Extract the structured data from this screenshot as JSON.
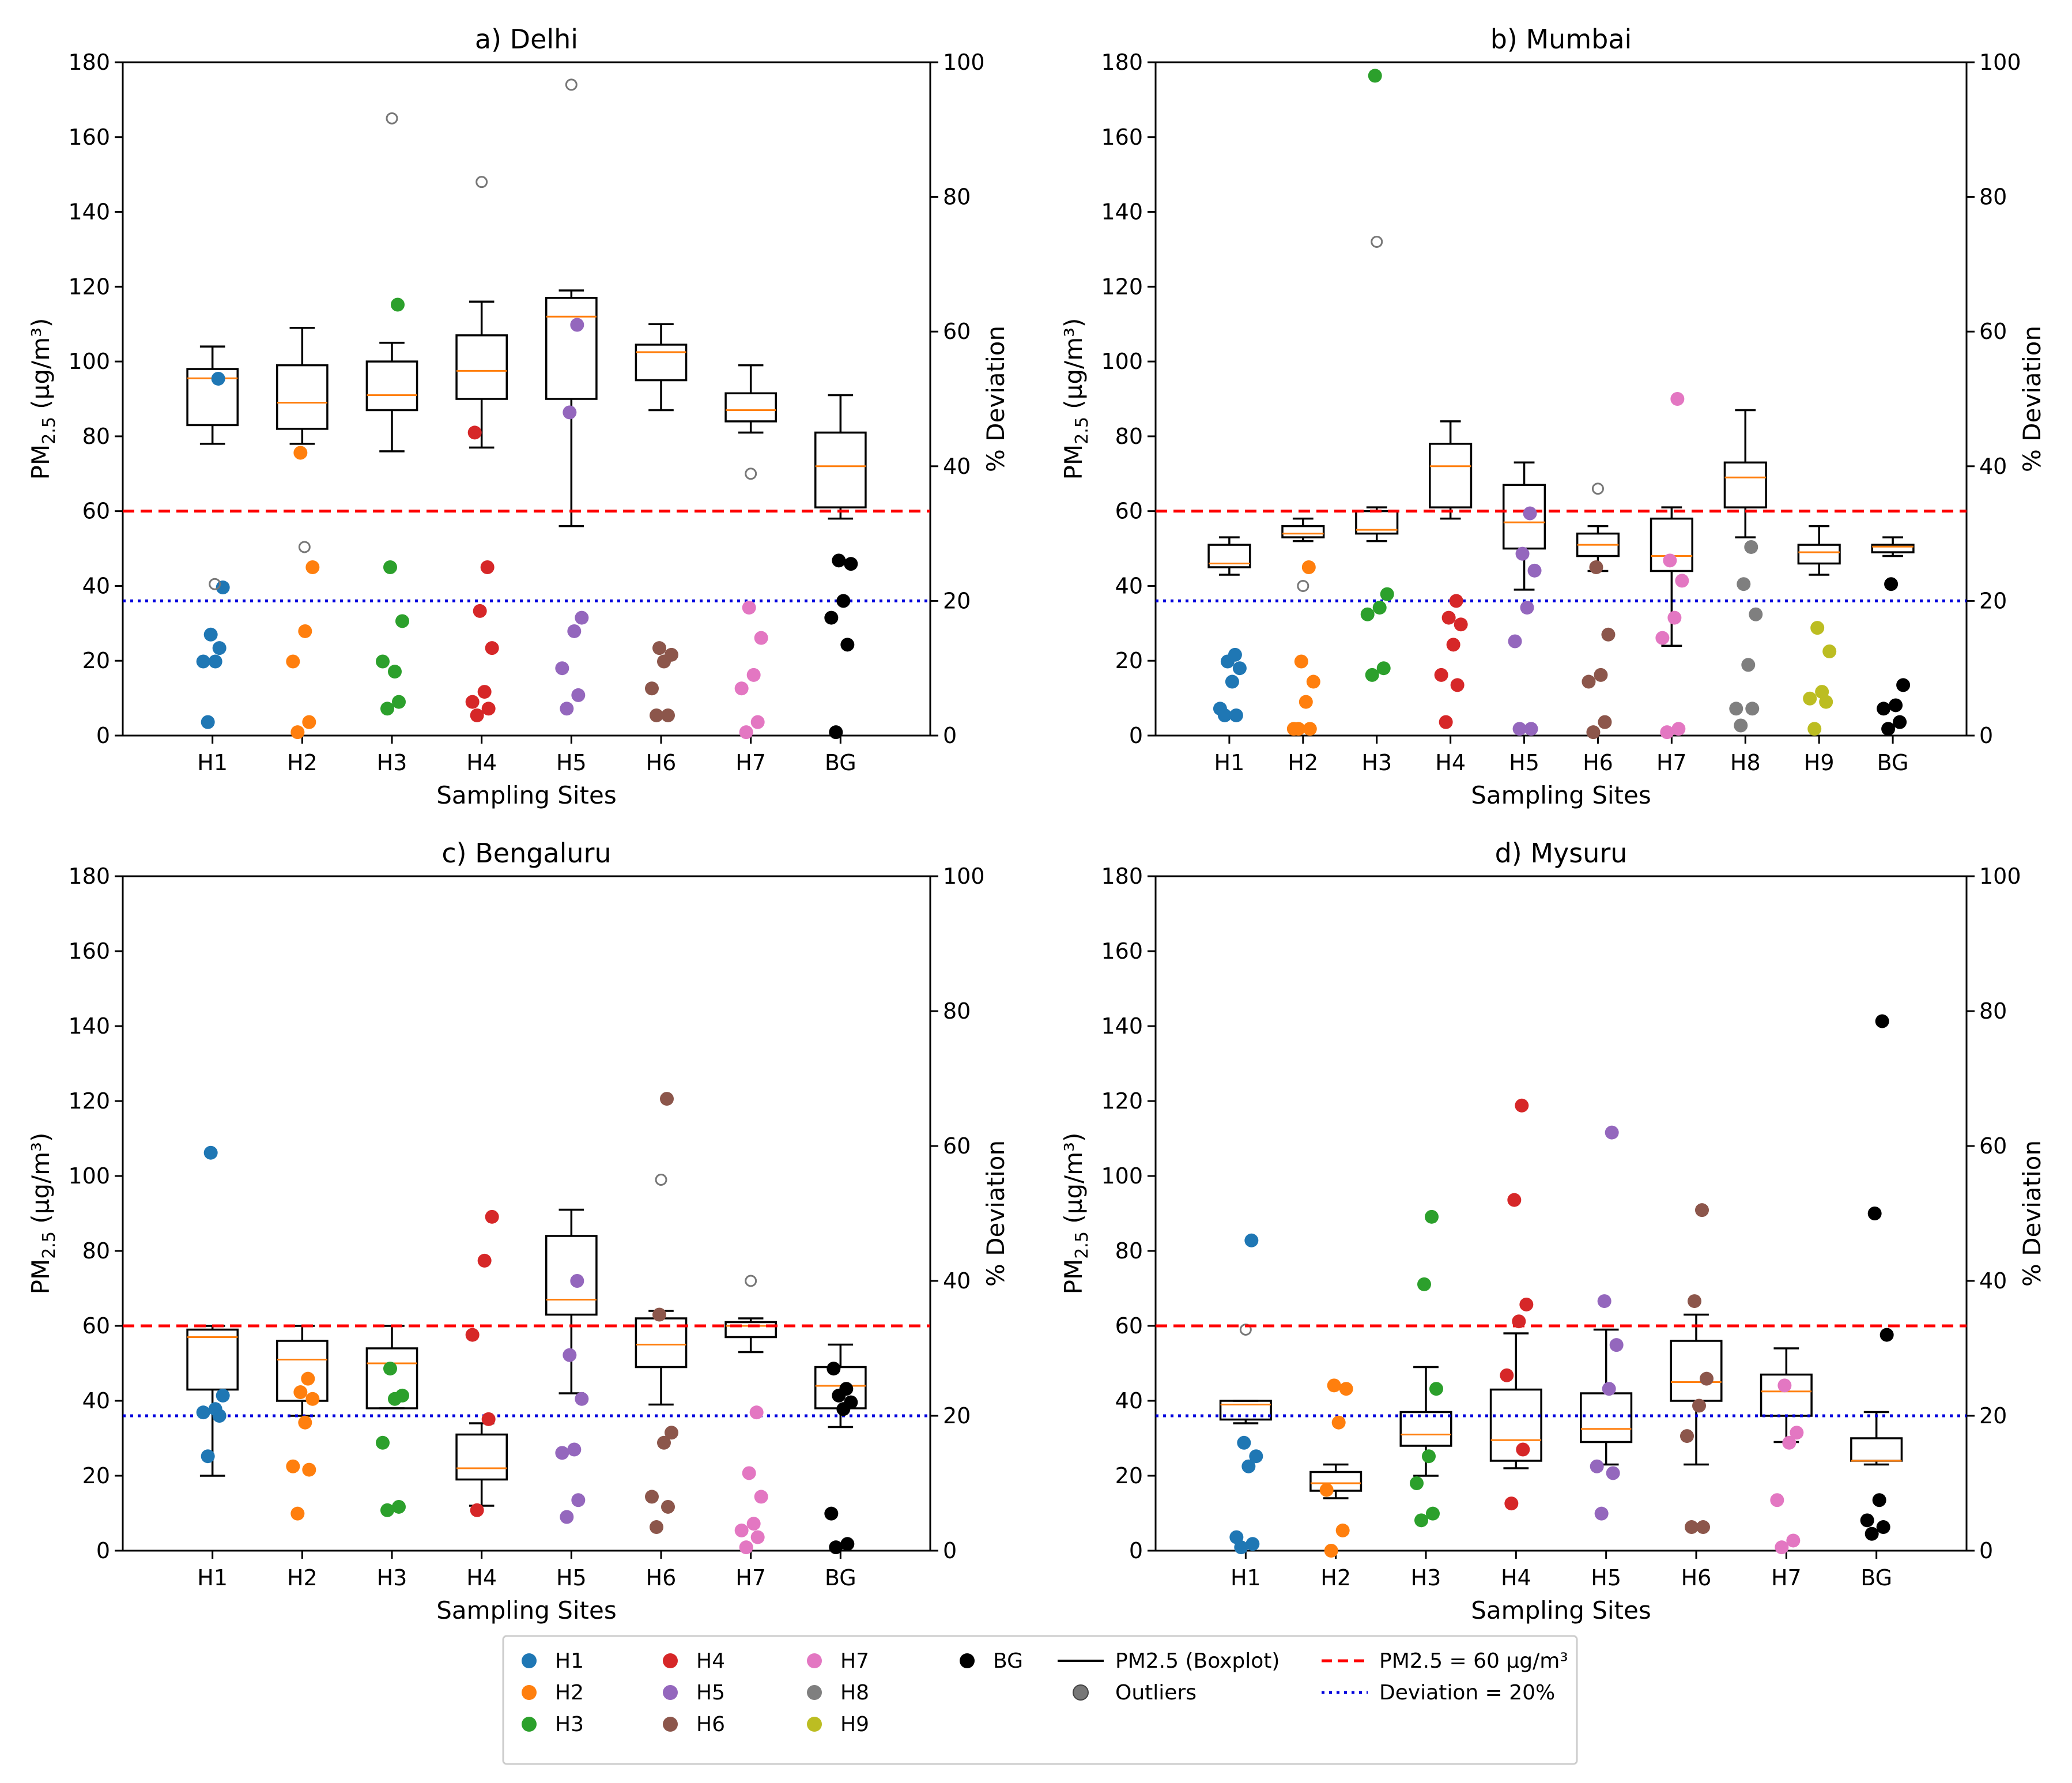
{
  "figure": {
    "x_axis_label": "Sampling Sites",
    "left_axis_label": "PM2.5 (µg/m³)",
    "left_axis_label_main": "PM",
    "left_axis_label_sub": "2.5",
    "left_axis_label_unit": " (µg/m³)",
    "right_axis_label": "% Deviation",
    "left_ticks": [
      "0",
      "20",
      "40",
      "60",
      "80",
      "100",
      "120",
      "140",
      "160",
      "180"
    ],
    "right_ticks": [
      "0",
      "20",
      "40",
      "60",
      "80",
      "100"
    ]
  },
  "colors": {
    "H1": "#1f77b4",
    "H2": "#ff7f0e",
    "H3": "#2ca02c",
    "H4": "#d62728",
    "H5": "#9467bd",
    "H6": "#8c564b",
    "H7": "#e377c2",
    "H8": "#7f7f7f",
    "H9": "#bcbd22",
    "BG": "#000000",
    "median": "#ff7f0e",
    "threshold_line": "#ff0000",
    "deviation_line": "#0000dd"
  },
  "legend": {
    "items": [
      {
        "label": "H1",
        "kind": "dot",
        "color": "#1f77b4"
      },
      {
        "label": "H2",
        "kind": "dot",
        "color": "#ff7f0e"
      },
      {
        "label": "H3",
        "kind": "dot",
        "color": "#2ca02c"
      },
      {
        "label": "H4",
        "kind": "dot",
        "color": "#d62728"
      },
      {
        "label": "H5",
        "kind": "dot",
        "color": "#9467bd"
      },
      {
        "label": "H6",
        "kind": "dot",
        "color": "#8c564b"
      },
      {
        "label": "H7",
        "kind": "dot",
        "color": "#e377c2"
      },
      {
        "label": "H8",
        "kind": "dot",
        "color": "#7f7f7f"
      },
      {
        "label": "H9",
        "kind": "dot",
        "color": "#bcbd22"
      },
      {
        "label": "BG",
        "kind": "dot",
        "color": "#000000"
      }
    ],
    "boxplot_label": "PM2.5 (Boxplot)",
    "outliers_label": "Outliers",
    "threshold_label": "PM2.5 = 60 µg/m³",
    "deviation_label": "Deviation = 20%"
  },
  "chart_data": [
    {
      "type": "boxplot+scatter",
      "title": "a) Delhi",
      "xlabel": "Sampling Sites",
      "ylabel": "PM2.5 (µg/m³)",
      "ylabel_right": "% Deviation",
      "ylim": [
        0,
        180
      ],
      "ylim_right": [
        0,
        100
      ],
      "threshold_pm25": 60,
      "deviation_line_pct": 20,
      "categories": [
        "H1",
        "H2",
        "H3",
        "H4",
        "H5",
        "H6",
        "H7",
        "BG"
      ],
      "boxes": [
        {
          "site": "H1",
          "whisker_low": 78,
          "q1": 83,
          "median": 95.5,
          "q3": 98,
          "whisker_high": 104,
          "outliers": []
        },
        {
          "site": "H2",
          "whisker_low": 78,
          "q1": 82,
          "median": 89,
          "q3": 99,
          "whisker_high": 109,
          "outliers": []
        },
        {
          "site": "H3",
          "whisker_low": 76,
          "q1": 87,
          "median": 91,
          "q3": 100,
          "whisker_high": 105,
          "outliers": [
            165
          ]
        },
        {
          "site": "H4",
          "whisker_low": 77,
          "q1": 90,
          "median": 97.5,
          "q3": 107,
          "whisker_high": 116,
          "outliers": [
            148
          ]
        },
        {
          "site": "H5",
          "whisker_low": 56,
          "q1": 90,
          "median": 112,
          "q3": 117,
          "whisker_high": 119,
          "outliers": [
            174
          ]
        },
        {
          "site": "H6",
          "whisker_low": 87,
          "q1": 95,
          "median": 102.5,
          "q3": 104.5,
          "whisker_high": 110,
          "outliers": []
        },
        {
          "site": "H7",
          "whisker_low": 81,
          "q1": 84,
          "median": 87,
          "q3": 91.5,
          "whisker_high": 99,
          "outliers": [
            70
          ]
        },
        {
          "site": "BG",
          "whisker_low": 58,
          "q1": 61,
          "median": 72,
          "q3": 81,
          "whisker_high": 91,
          "outliers": []
        }
      ],
      "deviation_points": [
        {
          "site": "H1",
          "values": [
            2,
            13,
            11,
            11,
            22,
            15,
            53
          ]
        },
        {
          "site": "H2",
          "values": [
            0.5,
            2,
            11,
            15.5,
            25,
            42
          ]
        },
        {
          "site": "H3",
          "values": [
            4,
            5,
            11,
            9.5,
            17,
            25,
            64
          ]
        },
        {
          "site": "H4",
          "values": [
            3,
            4,
            5,
            6.5,
            13,
            18.5,
            25,
            45
          ]
        },
        {
          "site": "H5",
          "values": [
            4,
            6,
            10,
            15.5,
            17.5,
            48,
            61
          ]
        },
        {
          "site": "H6",
          "values": [
            3,
            3,
            7,
            11,
            12,
            13
          ]
        },
        {
          "site": "H7",
          "values": [
            0.5,
            2,
            7,
            9,
            14.5,
            19
          ]
        },
        {
          "site": "BG",
          "values": [
            0.5,
            13.5,
            17.5,
            20,
            25.5,
            26
          ]
        }
      ],
      "outlier_points": [
        {
          "site": "H1",
          "value": 22.5
        },
        {
          "site": "H2",
          "value": 28
        }
      ]
    },
    {
      "type": "boxplot+scatter",
      "title": "b) Mumbai",
      "xlabel": "Sampling Sites",
      "ylabel": "PM2.5 (µg/m³)",
      "ylabel_right": "% Deviation",
      "ylim": [
        0,
        180
      ],
      "ylim_right": [
        0,
        100
      ],
      "threshold_pm25": 60,
      "deviation_line_pct": 20,
      "categories": [
        "H1",
        "H2",
        "H3",
        "H4",
        "H5",
        "H6",
        "H7",
        "H8",
        "H9",
        "BG"
      ],
      "boxes": [
        {
          "site": "H1",
          "whisker_low": 43,
          "q1": 45,
          "median": 46,
          "q3": 51,
          "whisker_high": 53,
          "outliers": []
        },
        {
          "site": "H2",
          "whisker_low": 52,
          "q1": 53,
          "median": 54,
          "q3": 56,
          "whisker_high": 58,
          "outliers": [
            40
          ]
        },
        {
          "site": "H3",
          "whisker_low": 52,
          "q1": 54,
          "median": 55,
          "q3": 60,
          "whisker_high": 61,
          "outliers": [
            132
          ]
        },
        {
          "site": "H4",
          "whisker_low": 58,
          "q1": 61,
          "median": 72,
          "q3": 78,
          "whisker_high": 84,
          "outliers": []
        },
        {
          "site": "H5",
          "whisker_low": 39,
          "q1": 50,
          "median": 57,
          "q3": 67,
          "whisker_high": 73,
          "outliers": []
        },
        {
          "site": "H6",
          "whisker_low": 44,
          "q1": 48,
          "median": 51,
          "q3": 54,
          "whisker_high": 56,
          "outliers": [
            66
          ]
        },
        {
          "site": "H7",
          "whisker_low": 24,
          "q1": 44,
          "median": 48,
          "q3": 58,
          "whisker_high": 61,
          "outliers": []
        },
        {
          "site": "H8",
          "whisker_low": 53,
          "q1": 61,
          "median": 69,
          "q3": 73,
          "whisker_high": 87,
          "outliers": []
        },
        {
          "site": "H9",
          "whisker_low": 43,
          "q1": 46,
          "median": 49,
          "q3": 51,
          "whisker_high": 56,
          "outliers": []
        },
        {
          "site": "BG",
          "whisker_low": 48,
          "q1": 49,
          "median": 50.5,
          "q3": 51,
          "whisker_high": 53,
          "outliers": []
        }
      ],
      "deviation_points": [
        {
          "site": "H1",
          "values": [
            3,
            3,
            4,
            8,
            10,
            11,
            12
          ]
        },
        {
          "site": "H2",
          "values": [
            1,
            1,
            1,
            5,
            8,
            11,
            25
          ]
        },
        {
          "site": "H3",
          "values": [
            9,
            10,
            18,
            19,
            21,
            98
          ]
        },
        {
          "site": "H4",
          "values": [
            2,
            7.5,
            9,
            13.5,
            16.5,
            17.5,
            20
          ]
        },
        {
          "site": "H5",
          "values": [
            1,
            1,
            14,
            19,
            24.5,
            27,
            33
          ]
        },
        {
          "site": "H6",
          "values": [
            0.5,
            2,
            8,
            9,
            15,
            25
          ]
        },
        {
          "site": "H7",
          "values": [
            0.5,
            1,
            14.5,
            17.5,
            23,
            26,
            50
          ]
        },
        {
          "site": "H8",
          "values": [
            1.5,
            4,
            4,
            10.5,
            18,
            22.5,
            28
          ]
        },
        {
          "site": "H9",
          "values": [
            1,
            5,
            5.5,
            6.5,
            12.5,
            16
          ]
        },
        {
          "site": "BG",
          "values": [
            1,
            2,
            4,
            4.5,
            7.5,
            22.5
          ]
        }
      ],
      "outlier_points": []
    },
    {
      "type": "boxplot+scatter",
      "title": "c) Bengaluru",
      "xlabel": "Sampling Sites",
      "ylabel": "PM2.5 (µg/m³)",
      "ylabel_right": "% Deviation",
      "ylim": [
        0,
        180
      ],
      "ylim_right": [
        0,
        100
      ],
      "threshold_pm25": 60,
      "deviation_line_pct": 20,
      "categories": [
        "H1",
        "H2",
        "H3",
        "H4",
        "H5",
        "H6",
        "H7",
        "BG"
      ],
      "boxes": [
        {
          "site": "H1",
          "whisker_low": 20,
          "q1": 43,
          "median": 57,
          "q3": 59,
          "whisker_high": 60,
          "outliers": []
        },
        {
          "site": "H2",
          "whisker_low": 36,
          "q1": 40,
          "median": 51,
          "q3": 56,
          "whisker_high": 60,
          "outliers": []
        },
        {
          "site": "H3",
          "whisker_low": 38,
          "q1": 38,
          "median": 50,
          "q3": 54,
          "whisker_high": 60,
          "outliers": []
        },
        {
          "site": "H4",
          "whisker_low": 12,
          "q1": 19,
          "median": 22,
          "q3": 31,
          "whisker_high": 34,
          "outliers": []
        },
        {
          "site": "H5",
          "whisker_low": 42,
          "q1": 63,
          "median": 67,
          "q3": 84,
          "whisker_high": 91,
          "outliers": []
        },
        {
          "site": "H6",
          "whisker_low": 39,
          "q1": 49,
          "median": 55,
          "q3": 62,
          "whisker_high": 64,
          "outliers": [
            99
          ]
        },
        {
          "site": "H7",
          "whisker_low": 53,
          "q1": 57,
          "median": 60,
          "q3": 61,
          "whisker_high": 62,
          "outliers": [
            72
          ]
        },
        {
          "site": "BG",
          "whisker_low": 33,
          "q1": 38,
          "median": 44,
          "q3": 49,
          "whisker_high": 55,
          "outliers": []
        }
      ],
      "deviation_points": [
        {
          "site": "H1",
          "values": [
            14,
            20,
            20.5,
            21,
            23,
            59
          ]
        },
        {
          "site": "H2",
          "values": [
            5.5,
            12,
            12.5,
            19,
            22.5,
            23.5,
            25.5
          ]
        },
        {
          "site": "H3",
          "values": [
            6,
            6.5,
            16,
            22.5,
            23,
            27
          ]
        },
        {
          "site": "H4",
          "values": [
            6,
            19.5,
            32,
            43,
            49.5
          ]
        },
        {
          "site": "H5",
          "values": [
            5,
            7.5,
            14.5,
            15,
            22.5,
            29,
            40
          ]
        },
        {
          "site": "H6",
          "values": [
            3.5,
            6.5,
            8,
            16,
            17.5,
            35,
            67
          ]
        },
        {
          "site": "H7",
          "values": [
            0.5,
            2,
            3,
            4,
            8,
            11.5,
            20.5
          ]
        },
        {
          "site": "BG",
          "values": [
            0.5,
            1,
            5.5,
            21,
            22,
            23,
            24,
            27
          ]
        }
      ],
      "outlier_points": []
    },
    {
      "type": "boxplot+scatter",
      "title": "d) Mysuru",
      "xlabel": "Sampling Sites",
      "ylabel": "PM2.5 (µg/m³)",
      "ylabel_right": "% Deviation",
      "ylim": [
        0,
        180
      ],
      "ylim_right": [
        0,
        100
      ],
      "threshold_pm25": 60,
      "deviation_line_pct": 20,
      "categories": [
        "H1",
        "H2",
        "H3",
        "H4",
        "H5",
        "H6",
        "H7",
        "BG"
      ],
      "boxes": [
        {
          "site": "H1",
          "whisker_low": 34,
          "q1": 35,
          "median": 39,
          "q3": 40,
          "whisker_high": 40,
          "outliers": [
            59
          ]
        },
        {
          "site": "H2",
          "whisker_low": 14,
          "q1": 16,
          "median": 18,
          "q3": 21,
          "whisker_high": 23,
          "outliers": []
        },
        {
          "site": "H3",
          "whisker_low": 20,
          "q1": 28,
          "median": 31,
          "q3": 37,
          "whisker_high": 49,
          "outliers": []
        },
        {
          "site": "H4",
          "whisker_low": 22,
          "q1": 24,
          "median": 29.5,
          "q3": 43,
          "whisker_high": 58,
          "outliers": []
        },
        {
          "site": "H5",
          "whisker_low": 23,
          "q1": 29,
          "median": 32.5,
          "q3": 42,
          "whisker_high": 59,
          "outliers": []
        },
        {
          "site": "H6",
          "whisker_low": 23,
          "q1": 40,
          "median": 45,
          "q3": 56,
          "whisker_high": 63,
          "outliers": []
        },
        {
          "site": "H7",
          "whisker_low": 29,
          "q1": 36,
          "median": 42.5,
          "q3": 47,
          "whisker_high": 54,
          "outliers": []
        },
        {
          "site": "BG",
          "whisker_low": 23,
          "q1": 24,
          "median": 24,
          "q3": 30,
          "whisker_high": 37,
          "outliers": []
        }
      ],
      "deviation_points": [
        {
          "site": "H1",
          "values": [
            0.5,
            1,
            2,
            12.5,
            14,
            16,
            46
          ]
        },
        {
          "site": "H2",
          "values": [
            0,
            3,
            9,
            19,
            24,
            24.5
          ]
        },
        {
          "site": "H3",
          "values": [
            4.5,
            5.5,
            10,
            14,
            24,
            39.5,
            49.5
          ]
        },
        {
          "site": "H4",
          "values": [
            7,
            15,
            26,
            34,
            36.5,
            52,
            66
          ]
        },
        {
          "site": "H5",
          "values": [
            5.5,
            11.5,
            12.5,
            24,
            30.5,
            37,
            62
          ]
        },
        {
          "site": "H6",
          "values": [
            3.5,
            3.5,
            17,
            21.5,
            25.5,
            37,
            50.5
          ]
        },
        {
          "site": "H7",
          "values": [
            0.5,
            1.5,
            7.5,
            16,
            17.5,
            24.5
          ]
        },
        {
          "site": "BG",
          "values": [
            2.5,
            3.5,
            4.5,
            7.5,
            32,
            50,
            78.5
          ]
        }
      ],
      "outlier_points": []
    }
  ]
}
